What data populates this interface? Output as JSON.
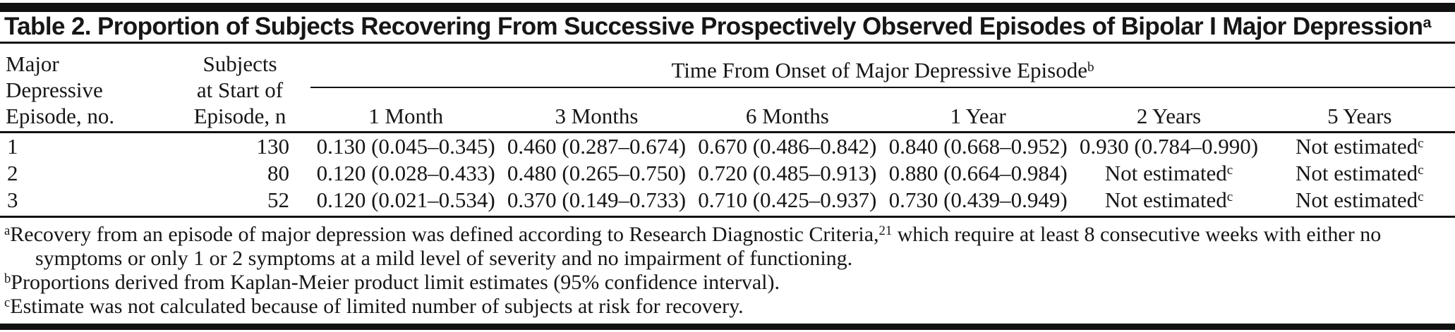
{
  "title": {
    "text": "Table 2. Proportion of Subjects Recovering From Successive Prospectively Observed Episodes of Bipolar I Major Depression",
    "sup": "a"
  },
  "table": {
    "episode_header": "Major\nDepressive\nEpisode, no.",
    "subjects_header": "Subjects\nat Start of\nEpisode, n",
    "span_header": {
      "text": "Time From Onset of Major Depressive Episode",
      "sup": "b"
    },
    "time_headers": [
      "1 Month",
      "3 Months",
      "6 Months",
      "1 Year",
      "2 Years",
      "5 Years"
    ],
    "rows": [
      {
        "episode": "1",
        "n": "130",
        "cells": [
          {
            "text": "0.130 (0.045–0.345)",
            "sup": ""
          },
          {
            "text": "0.460 (0.287–0.674)",
            "sup": ""
          },
          {
            "text": "0.670 (0.486–0.842)",
            "sup": ""
          },
          {
            "text": "0.840 (0.668–0.952)",
            "sup": ""
          },
          {
            "text": "0.930 (0.784–0.990)",
            "sup": ""
          },
          {
            "text": "Not estimated",
            "sup": "c"
          }
        ]
      },
      {
        "episode": "2",
        "n": "80",
        "cells": [
          {
            "text": "0.120 (0.028–0.433)",
            "sup": ""
          },
          {
            "text": "0.480 (0.265–0.750)",
            "sup": ""
          },
          {
            "text": "0.720 (0.485–0.913)",
            "sup": ""
          },
          {
            "text": "0.880 (0.664–0.984)",
            "sup": ""
          },
          {
            "text": "Not estimated",
            "sup": "c"
          },
          {
            "text": "Not estimated",
            "sup": "c"
          }
        ]
      },
      {
        "episode": "3",
        "n": "52",
        "cells": [
          {
            "text": "0.120 (0.021–0.534)",
            "sup": ""
          },
          {
            "text": "0.370 (0.149–0.733)",
            "sup": ""
          },
          {
            "text": "0.710 (0.425–0.937)",
            "sup": ""
          },
          {
            "text": "0.730 (0.439–0.949)",
            "sup": ""
          },
          {
            "text": "Not estimated",
            "sup": "c"
          },
          {
            "text": "Not estimated",
            "sup": "c"
          }
        ]
      }
    ]
  },
  "footnotes": [
    {
      "marker": "a",
      "part1": "Recovery from an episode of major depression was defined according to Research Diagnostic Criteria,",
      "sup": "21",
      "part2": " which require at least 8 consecutive weeks with either no symptoms or only 1 or 2 symptoms at a mild level of severity and no impairment of functioning."
    },
    {
      "marker": "b",
      "part1": "Proportions derived from Kaplan-Meier product limit estimates (95% confidence interval).",
      "sup": "",
      "part2": ""
    },
    {
      "marker": "c",
      "part1": "Estimate was not calculated because of limited number of subjects at risk for recovery.",
      "sup": "",
      "part2": ""
    }
  ],
  "colors": {
    "text": "#161616",
    "rule": "#111111",
    "background": "#ffffff"
  }
}
